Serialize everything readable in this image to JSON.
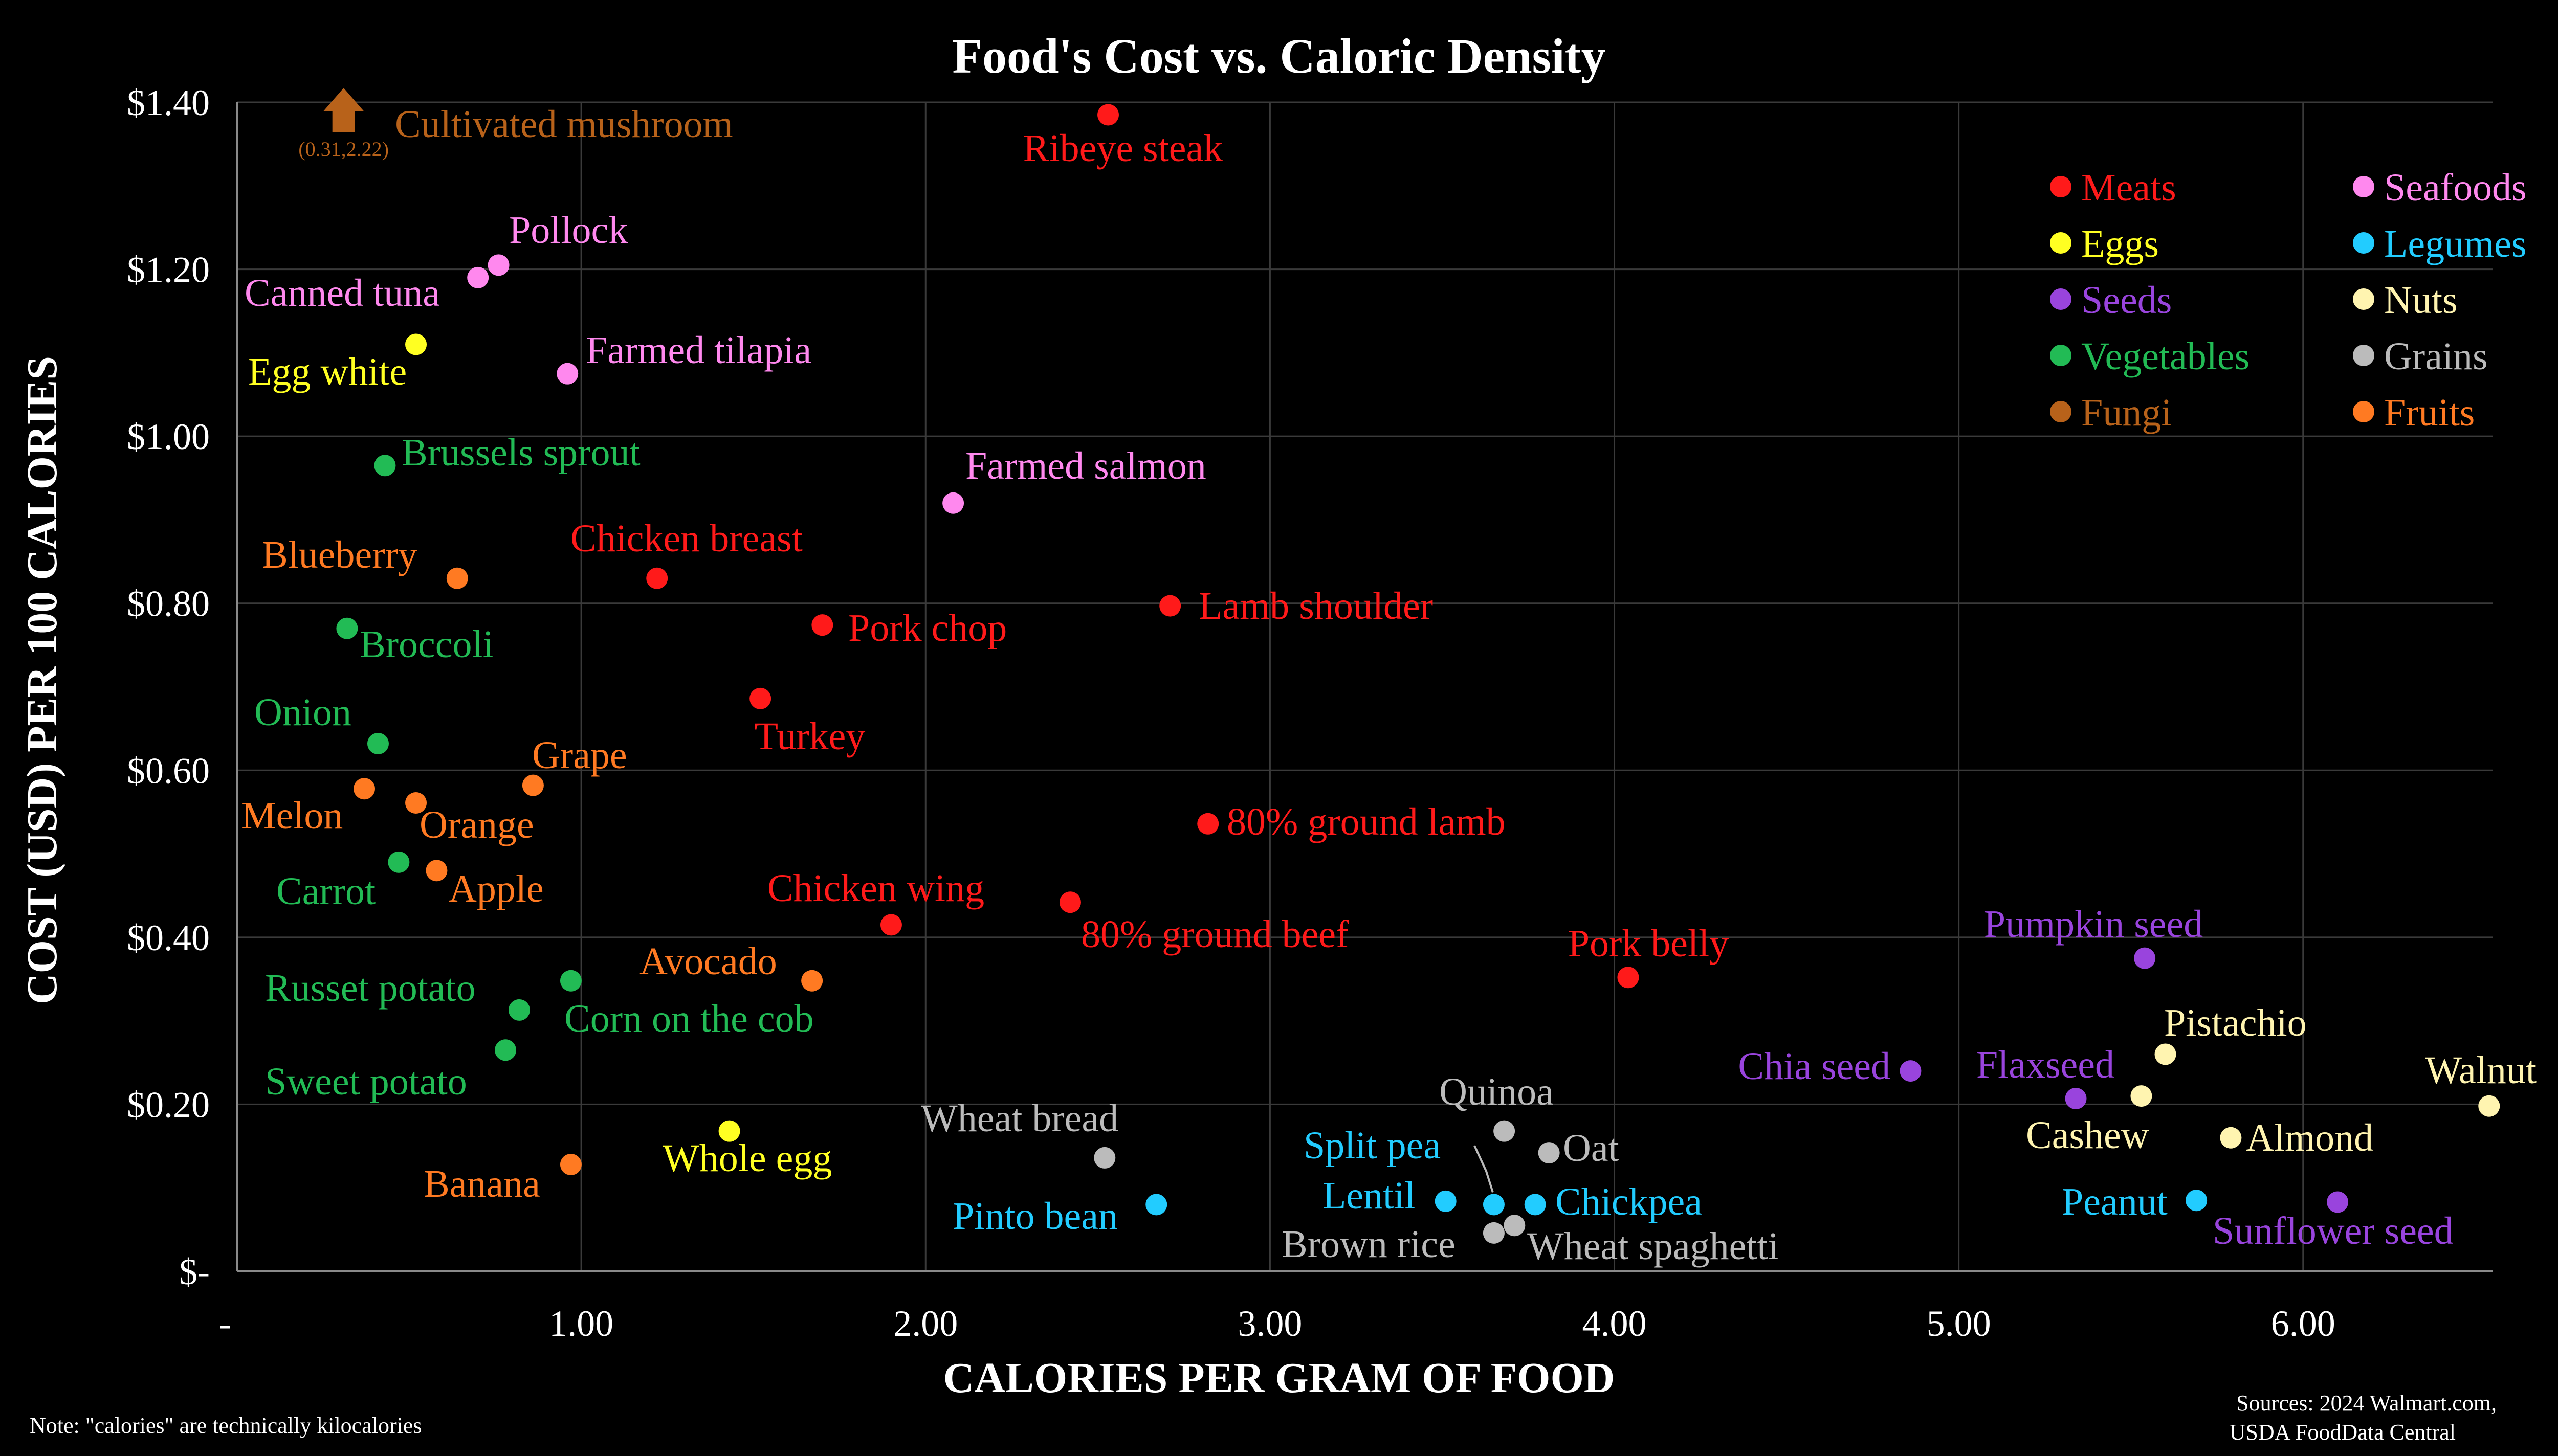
{
  "chart_data": {
    "type": "scatter",
    "title": "Food's Cost vs. Caloric Density",
    "xlabel": "CALORIES PER GRAM OF FOOD",
    "ylabel": "COST (USD) PER 100 CALORIES",
    "xlim": [
      0,
      6.55
    ],
    "ylim": [
      0,
      1.4
    ],
    "x_ticks": [
      {
        "value": 0,
        "label": "-"
      },
      {
        "value": 1,
        "label": "1.00"
      },
      {
        "value": 2,
        "label": "2.00"
      },
      {
        "value": 3,
        "label": "3.00"
      },
      {
        "value": 4,
        "label": "4.00"
      },
      {
        "value": 5,
        "label": "5.00"
      },
      {
        "value": 6,
        "label": "6.00"
      }
    ],
    "y_ticks": [
      {
        "value": 0,
        "label": "$-"
      },
      {
        "value": 0.2,
        "label": "$0.20"
      },
      {
        "value": 0.4,
        "label": "$0.40"
      },
      {
        "value": 0.6,
        "label": "$0.60"
      },
      {
        "value": 0.8,
        "label": "$0.80"
      },
      {
        "value": 1.0,
        "label": "$1.00"
      },
      {
        "value": 1.2,
        "label": "$1.20"
      },
      {
        "value": 1.4,
        "label": "$1.40"
      }
    ],
    "grid": true,
    "legend_position": "top-right",
    "categories": [
      {
        "name": "Meats",
        "color": "#ff1a1a"
      },
      {
        "name": "Seafoods",
        "color": "#ff88ee"
      },
      {
        "name": "Eggs",
        "color": "#ffff22"
      },
      {
        "name": "Legumes",
        "color": "#22ccff"
      },
      {
        "name": "Seeds",
        "color": "#9944dd"
      },
      {
        "name": "Nuts",
        "color": "#fff4b0"
      },
      {
        "name": "Vegetables",
        "color": "#22bb55"
      },
      {
        "name": "Grains",
        "color": "#bbbbbb"
      },
      {
        "name": "Fungi",
        "color": "#b8621a"
      },
      {
        "name": "Fruits",
        "color": "#ff7a22"
      }
    ],
    "points": [
      {
        "label": "Ribeye steak",
        "cat": "Meats",
        "x": 2.53,
        "y": 1.385
      },
      {
        "label": "Pollock",
        "cat": "Seafoods",
        "x": 0.76,
        "y": 1.205
      },
      {
        "label": "Canned tuna",
        "cat": "Seafoods",
        "x": 0.7,
        "y": 1.19
      },
      {
        "label": "Egg white",
        "cat": "Eggs",
        "x": 0.52,
        "y": 1.11
      },
      {
        "label": "Farmed tilapia",
        "cat": "Seafoods",
        "x": 0.96,
        "y": 1.075
      },
      {
        "label": "Brussels sprout",
        "cat": "Vegetables",
        "x": 0.43,
        "y": 0.965
      },
      {
        "label": "Farmed salmon",
        "cat": "Seafoods",
        "x": 2.08,
        "y": 0.92
      },
      {
        "label": "Chicken breast",
        "cat": "Meats",
        "x": 1.22,
        "y": 0.83
      },
      {
        "label": "Blueberry",
        "cat": "Fruits",
        "x": 0.64,
        "y": 0.83
      },
      {
        "label": "Lamb shoulder",
        "cat": "Meats",
        "x": 2.71,
        "y": 0.797
      },
      {
        "label": "Pork chop",
        "cat": "Meats",
        "x": 1.7,
        "y": 0.774
      },
      {
        "label": "Broccoli",
        "cat": "Vegetables",
        "x": 0.32,
        "y": 0.77
      },
      {
        "label": "Turkey",
        "cat": "Meats",
        "x": 1.52,
        "y": 0.686
      },
      {
        "label": "Onion",
        "cat": "Vegetables",
        "x": 0.41,
        "y": 0.632
      },
      {
        "label": "Grape",
        "cat": "Fruits",
        "x": 0.86,
        "y": 0.582
      },
      {
        "label": "Melon",
        "cat": "Fruits",
        "x": 0.37,
        "y": 0.578
      },
      {
        "label": "Orange",
        "cat": "Fruits",
        "x": 0.52,
        "y": 0.561
      },
      {
        "label": "80% ground lamb",
        "cat": "Meats",
        "x": 2.82,
        "y": 0.536
      },
      {
        "label": "Carrot",
        "cat": "Vegetables",
        "x": 0.47,
        "y": 0.49
      },
      {
        "label": "Apple",
        "cat": "Fruits",
        "x": 0.58,
        "y": 0.48
      },
      {
        "label": "80% ground beef",
        "cat": "Meats",
        "x": 2.42,
        "y": 0.442
      },
      {
        "label": "Chicken wing",
        "cat": "Meats",
        "x": 1.9,
        "y": 0.415
      },
      {
        "label": "Pumpkin seed",
        "cat": "Seeds",
        "x": 5.54,
        "y": 0.375
      },
      {
        "label": "Pork belly",
        "cat": "Meats",
        "x": 4.04,
        "y": 0.352
      },
      {
        "label": "Avocado",
        "cat": "Fruits",
        "x": 1.67,
        "y": 0.348
      },
      {
        "label": "Corn on the cob",
        "cat": "Vegetables",
        "x": 0.97,
        "y": 0.348
      },
      {
        "label": "Russet potato",
        "cat": "Vegetables",
        "x": 0.82,
        "y": 0.313
      },
      {
        "label": "Sweet potato",
        "cat": "Vegetables",
        "x": 0.78,
        "y": 0.265
      },
      {
        "label": "Pistachio",
        "cat": "Nuts",
        "x": 5.6,
        "y": 0.26
      },
      {
        "label": "Chia seed",
        "cat": "Seeds",
        "x": 4.86,
        "y": 0.24
      },
      {
        "label": "Flaxseed",
        "cat": "Seeds",
        "x": 5.34,
        "y": 0.207
      },
      {
        "label": "Cashew",
        "cat": "Nuts",
        "x": 5.53,
        "y": 0.21
      },
      {
        "label": "Walnut",
        "cat": "Nuts",
        "x": 6.54,
        "y": 0.198
      },
      {
        "label": "Quinoa",
        "cat": "Grains",
        "x": 3.68,
        "y": 0.168
      },
      {
        "label": "Whole egg",
        "cat": "Eggs",
        "x": 1.43,
        "y": 0.168
      },
      {
        "label": "Almond",
        "cat": "Nuts",
        "x": 5.79,
        "y": 0.16
      },
      {
        "label": "Oat",
        "cat": "Grains",
        "x": 3.81,
        "y": 0.142
      },
      {
        "label": "Wheat bread",
        "cat": "Grains",
        "x": 2.52,
        "y": 0.136
      },
      {
        "label": "Banana",
        "cat": "Fruits",
        "x": 0.97,
        "y": 0.128
      },
      {
        "label": "Lentil",
        "cat": "Legumes",
        "x": 3.51,
        "y": 0.084
      },
      {
        "label": "Peanut",
        "cat": "Legumes",
        "x": 5.69,
        "y": 0.085
      },
      {
        "label": "Sunflower seed",
        "cat": "Seeds",
        "x": 6.1,
        "y": 0.083
      },
      {
        "label": "Pinto bean",
        "cat": "Legumes",
        "x": 2.67,
        "y": 0.08
      },
      {
        "label": "Split pea",
        "cat": "Legumes",
        "x": 3.65,
        "y": 0.08
      },
      {
        "label": "Chickpea",
        "cat": "Legumes",
        "x": 3.77,
        "y": 0.08
      },
      {
        "label": "Wheat spaghetti",
        "cat": "Grains",
        "x": 3.71,
        "y": 0.055
      },
      {
        "label": "Brown rice",
        "cat": "Grains",
        "x": 3.65,
        "y": 0.046
      }
    ],
    "offscale_annotation": {
      "label": "Cultivated mushroom",
      "cat": "Fungi",
      "x": 0.31,
      "y": 2.22,
      "coord_text": "(0.31,2.22)"
    }
  },
  "footer": {
    "note": "Note: \"calories\" are technically kilocalories",
    "sources_line1": "Sources: 2024 Walmart.com,",
    "sources_line2": "USDA FoodData Central"
  }
}
